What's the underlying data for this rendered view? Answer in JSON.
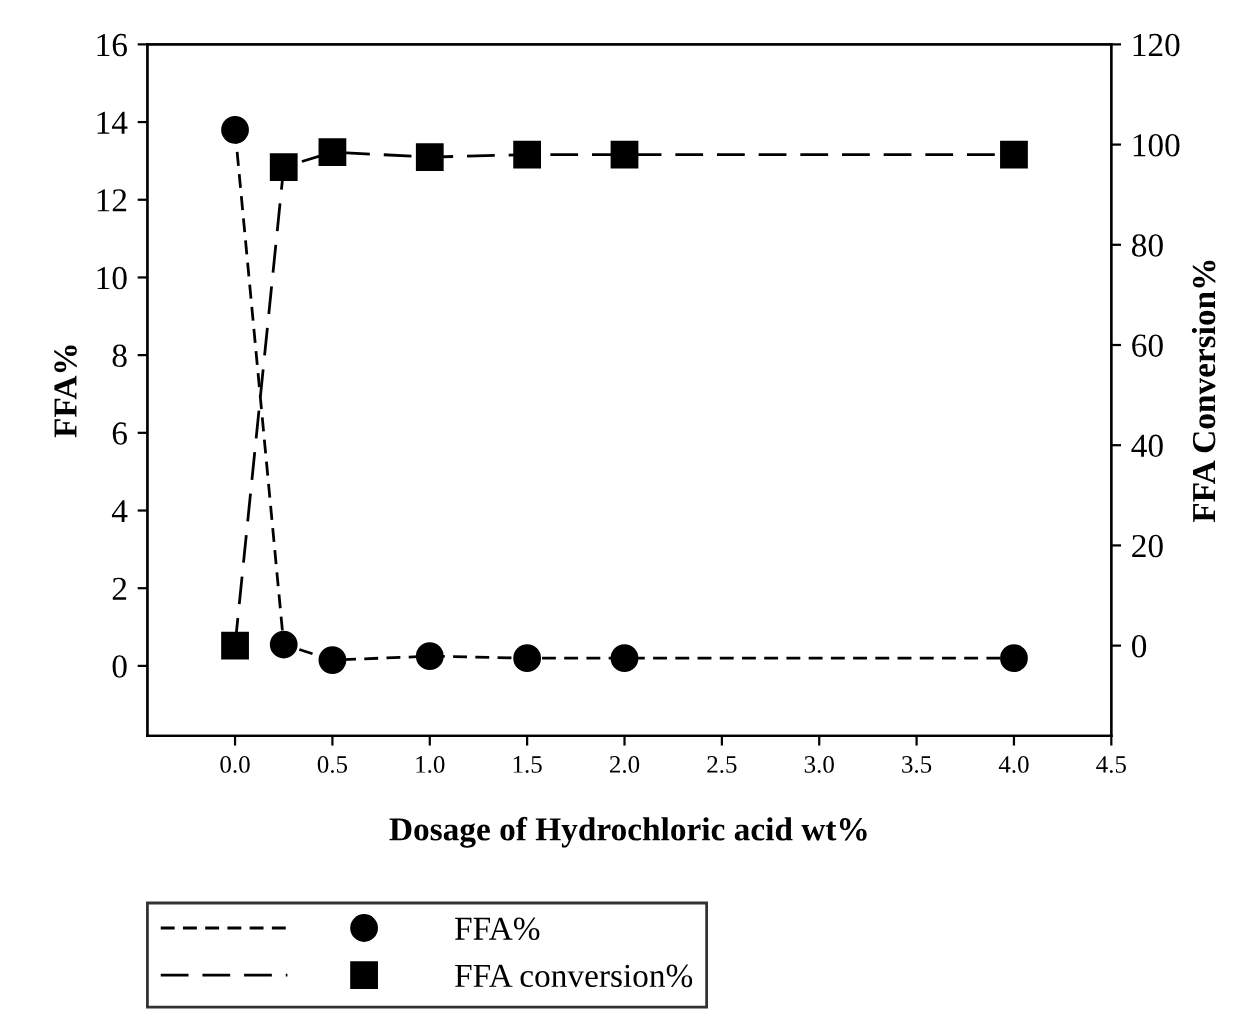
{
  "chart_data": {
    "type": "line",
    "xlabel": "Dosage of Hydrochloric acid wt%",
    "ylabel": "FFA%",
    "y2label": "FFA Conversion%",
    "x": [
      0,
      0.25,
      0.5,
      1.0,
      1.5,
      2.0,
      4.0
    ],
    "series": [
      {
        "name": "FFA%",
        "color": "#000000",
        "values": [
          13.8,
          0.55,
          0.15,
          0.25,
          0.2,
          0.2,
          0.2
        ],
        "marker": "circle",
        "line_style": "dashed"
      },
      {
        "name": "FFA conversion%",
        "color": "#000000",
        "values": [
          0,
          95.5,
          98.5,
          97.5,
          98,
          98,
          98
        ],
        "marker": "square",
        "line_style": "longdashed",
        "axis": "y2"
      }
    ],
    "xlim": [
      -0.45,
      4.5
    ],
    "xticks": [
      {
        "value": 0,
        "label": "0.0"
      },
      0.5,
      {
        "value": 1,
        "label": "1.0"
      },
      1.5,
      {
        "value": 2,
        "label": "2.0"
      },
      2.5,
      {
        "value": 3,
        "label": "3.0"
      },
      3.5,
      {
        "value": 4,
        "label": "4.0"
      },
      4.5
    ],
    "ylim": [
      -1.8,
      16
    ],
    "yticks": [
      0,
      2,
      4,
      6,
      8,
      10,
      12,
      14,
      16
    ],
    "y2lim": [
      -18,
      120
    ],
    "y2ticks": [
      0,
      20,
      40,
      60,
      80,
      100,
      120
    ],
    "grid": false,
    "legend": "bottom"
  }
}
